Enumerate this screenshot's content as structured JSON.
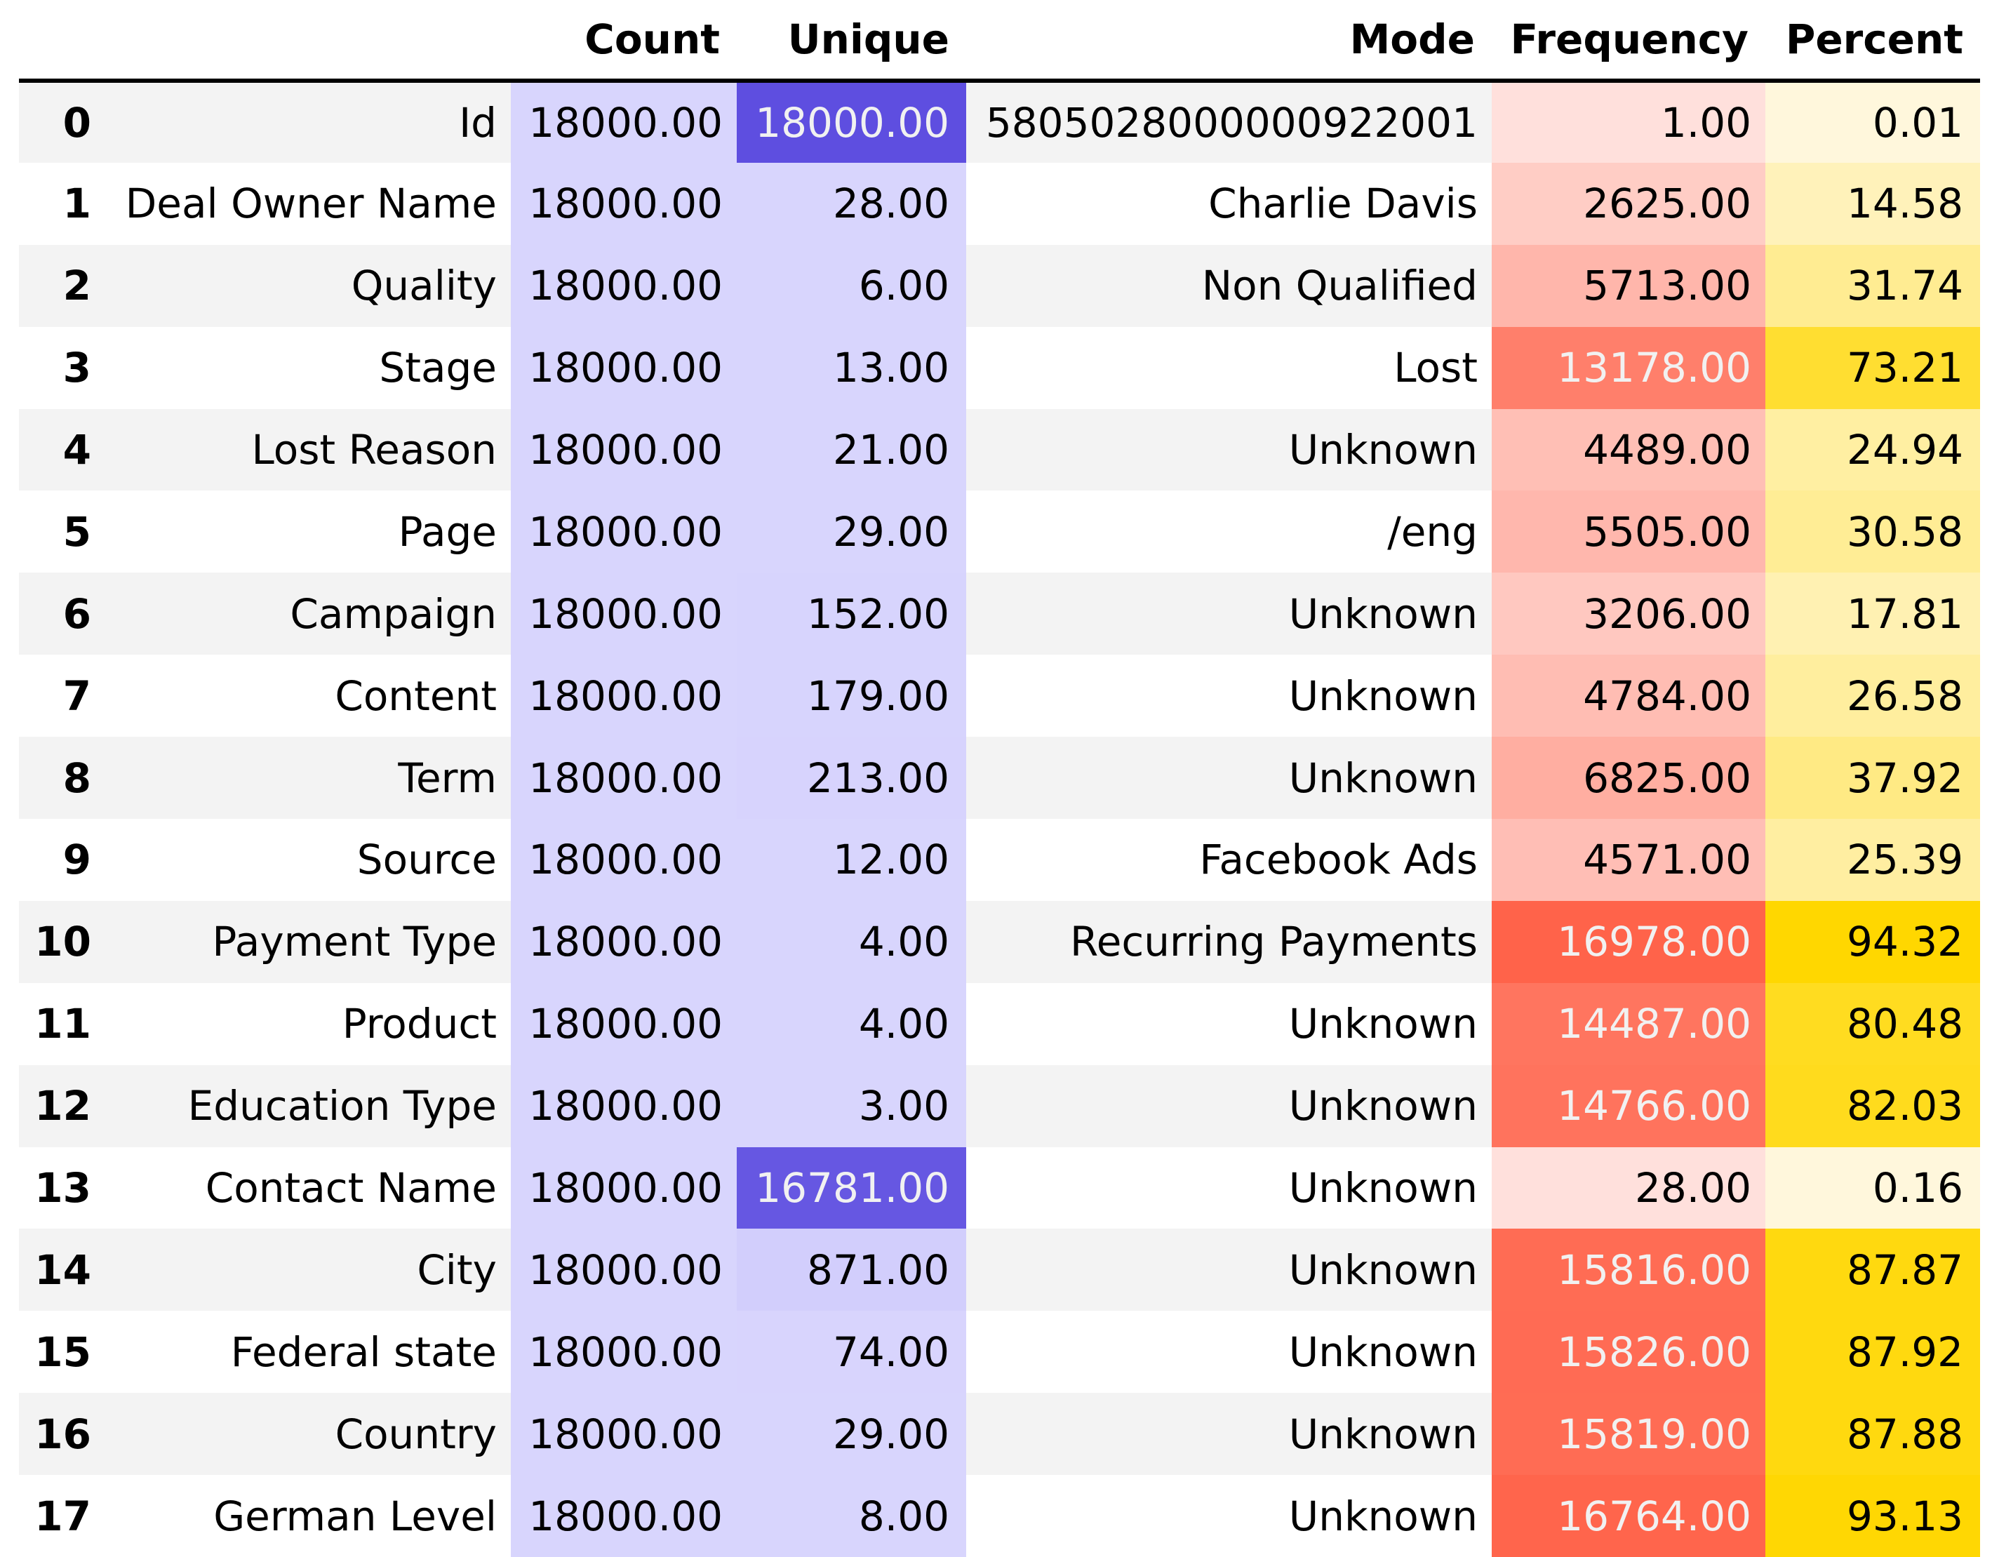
{
  "table": {
    "columns": [
      "",
      "",
      "Count",
      "Unique",
      "Mode",
      "Frequency",
      "Percent"
    ],
    "rows": [
      {
        "index": "0",
        "feature": "Id",
        "count": "18000.00",
        "unique": "18000.00",
        "mode": "5805028000000922001",
        "frequency": "1.00",
        "percent": "0.01"
      },
      {
        "index": "1",
        "feature": "Deal Owner Name",
        "count": "18000.00",
        "unique": "28.00",
        "mode": "Charlie Davis",
        "frequency": "2625.00",
        "percent": "14.58"
      },
      {
        "index": "2",
        "feature": "Quality",
        "count": "18000.00",
        "unique": "6.00",
        "mode": "Non Qualified",
        "frequency": "5713.00",
        "percent": "31.74"
      },
      {
        "index": "3",
        "feature": "Stage",
        "count": "18000.00",
        "unique": "13.00",
        "mode": "Lost",
        "frequency": "13178.00",
        "percent": "73.21"
      },
      {
        "index": "4",
        "feature": "Lost Reason",
        "count": "18000.00",
        "unique": "21.00",
        "mode": "Unknown",
        "frequency": "4489.00",
        "percent": "24.94"
      },
      {
        "index": "5",
        "feature": "Page",
        "count": "18000.00",
        "unique": "29.00",
        "mode": "/eng",
        "frequency": "5505.00",
        "percent": "30.58"
      },
      {
        "index": "6",
        "feature": "Campaign",
        "count": "18000.00",
        "unique": "152.00",
        "mode": "Unknown",
        "frequency": "3206.00",
        "percent": "17.81"
      },
      {
        "index": "7",
        "feature": "Content",
        "count": "18000.00",
        "unique": "179.00",
        "mode": "Unknown",
        "frequency": "4784.00",
        "percent": "26.58"
      },
      {
        "index": "8",
        "feature": "Term",
        "count": "18000.00",
        "unique": "213.00",
        "mode": "Unknown",
        "frequency": "6825.00",
        "percent": "37.92"
      },
      {
        "index": "9",
        "feature": "Source",
        "count": "18000.00",
        "unique": "12.00",
        "mode": "Facebook Ads",
        "frequency": "4571.00",
        "percent": "25.39"
      },
      {
        "index": "10",
        "feature": "Payment Type",
        "count": "18000.00",
        "unique": "4.00",
        "mode": "Recurring Payments",
        "frequency": "16978.00",
        "percent": "94.32"
      },
      {
        "index": "11",
        "feature": "Product",
        "count": "18000.00",
        "unique": "4.00",
        "mode": "Unknown",
        "frequency": "14487.00",
        "percent": "80.48"
      },
      {
        "index": "12",
        "feature": "Education Type",
        "count": "18000.00",
        "unique": "3.00",
        "mode": "Unknown",
        "frequency": "14766.00",
        "percent": "82.03"
      },
      {
        "index": "13",
        "feature": "Contact Name",
        "count": "18000.00",
        "unique": "16781.00",
        "mode": "Unknown",
        "frequency": "28.00",
        "percent": "0.16"
      },
      {
        "index": "14",
        "feature": "City",
        "count": "18000.00",
        "unique": "871.00",
        "mode": "Unknown",
        "frequency": "15816.00",
        "percent": "87.87"
      },
      {
        "index": "15",
        "feature": "Federal state",
        "count": "18000.00",
        "unique": "74.00",
        "mode": "Unknown",
        "frequency": "15826.00",
        "percent": "87.92"
      },
      {
        "index": "16",
        "feature": "Country",
        "count": "18000.00",
        "unique": "29.00",
        "mode": "Unknown",
        "frequency": "15819.00",
        "percent": "87.88"
      },
      {
        "index": "17",
        "feature": "German Level",
        "count": "18000.00",
        "unique": "8.00",
        "mode": "Unknown",
        "frequency": "16764.00",
        "percent": "93.13"
      }
    ]
  },
  "colors": {
    "stripe": "#f3f3f3",
    "count_bg": "#d8d5fd",
    "unique_low": "#d8d5fd",
    "unique_high": "#5e4ee0",
    "freq_low": "#ffe0dc",
    "freq_high": "#ff634a",
    "pct_low": "#fff7dc",
    "pct_high": "#ffd700"
  },
  "chart_data": {
    "type": "table",
    "columns": [
      "Count",
      "Unique",
      "Mode",
      "Frequency",
      "Percent"
    ],
    "index": [
      "0",
      "1",
      "2",
      "3",
      "4",
      "5",
      "6",
      "7",
      "8",
      "9",
      "10",
      "11",
      "12",
      "13",
      "14",
      "15",
      "16",
      "17"
    ],
    "features": [
      "Id",
      "Deal Owner Name",
      "Quality",
      "Stage",
      "Lost Reason",
      "Page",
      "Campaign",
      "Content",
      "Term",
      "Source",
      "Payment Type",
      "Product",
      "Education Type",
      "Contact Name",
      "City",
      "Federal state",
      "Country",
      "German Level"
    ],
    "count": [
      18000,
      18000,
      18000,
      18000,
      18000,
      18000,
      18000,
      18000,
      18000,
      18000,
      18000,
      18000,
      18000,
      18000,
      18000,
      18000,
      18000,
      18000
    ],
    "unique": [
      18000,
      28,
      6,
      13,
      21,
      29,
      152,
      179,
      213,
      12,
      4,
      4,
      3,
      16781,
      871,
      74,
      29,
      8
    ],
    "mode": [
      "5805028000000922001",
      "Charlie Davis",
      "Non Qualified",
      "Lost",
      "Unknown",
      "/eng",
      "Unknown",
      "Unknown",
      "Unknown",
      "Facebook Ads",
      "Recurring Payments",
      "Unknown",
      "Unknown",
      "Unknown",
      "Unknown",
      "Unknown",
      "Unknown",
      "Unknown"
    ],
    "frequency": [
      1,
      2625,
      5713,
      13178,
      4489,
      5505,
      3206,
      4784,
      6825,
      4571,
      16978,
      14487,
      14766,
      28,
      15816,
      15826,
      15819,
      16764
    ],
    "percent": [
      0.01,
      14.58,
      31.74,
      73.21,
      24.94,
      30.58,
      17.81,
      26.58,
      37.92,
      25.39,
      94.32,
      80.48,
      82.03,
      0.16,
      87.87,
      87.92,
      87.88,
      93.13
    ]
  }
}
